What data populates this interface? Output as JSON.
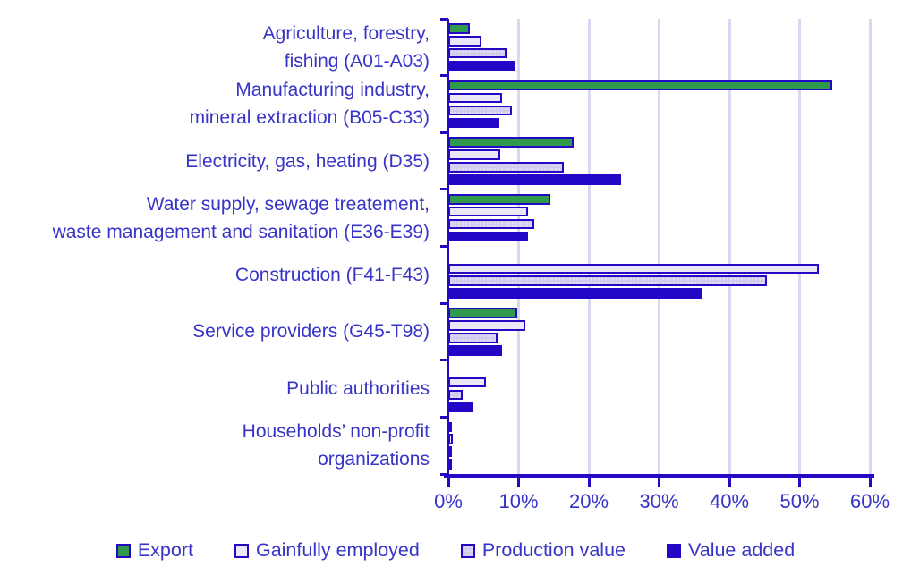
{
  "colors": {
    "axis": "#2408c4",
    "gridline": "#d7d9f0",
    "text": "#3734c7",
    "export_green": "#2d9b4b",
    "gainfully_fill": "#eae8fa",
    "production_fill": "#cfccee",
    "value_added_blue": "#2208c6",
    "background": "#ffffff"
  },
  "chart_data": {
    "type": "bar",
    "orientation": "horizontal",
    "title": "",
    "xlabel": "",
    "ylabel": "",
    "xlim": [
      0,
      60
    ],
    "x_tick_values": [
      0,
      10,
      20,
      30,
      40,
      50,
      60
    ],
    "x_tick_labels": [
      "0%",
      "10%",
      "20%",
      "30%",
      "40%",
      "50%",
      "60%"
    ],
    "grid": true,
    "legend_position": "bottom",
    "categories": [
      "Agriculture, forestry,\nfishing (A01-A03)",
      "Manufacturing industry,\nmineral extraction (B05-C33)",
      "Electricity, gas, heating (D35)",
      "Water supply, sewage treatement,\nwaste management and sanitation (E36-E39)",
      "Construction (F41-F43)",
      "Service providers (G45-T98)",
      "Public authorities",
      "Households’ non-profit\norganizations"
    ],
    "series": [
      {
        "name": "Export",
        "key": "export",
        "color": "#2d9b4b",
        "pattern": "solid",
        "values": [
          3.1,
          54.7,
          17.8,
          14.5,
          0,
          9.8,
          0,
          0.2
        ]
      },
      {
        "name": "Gainfully employed",
        "key": "gainfully",
        "color": "#eae8fa",
        "pattern": "solid",
        "values": [
          4.7,
          7.7,
          7.4,
          11.4,
          52.7,
          10.9,
          5.3,
          0.6
        ]
      },
      {
        "name": "Production value",
        "key": "production",
        "color": "#cfccee",
        "pattern": "dots",
        "values": [
          8.3,
          9.1,
          16.4,
          12.2,
          45.4,
          7.0,
          2.0,
          0.3
        ]
      },
      {
        "name": "Value added",
        "key": "value",
        "color": "#2208c6",
        "pattern": "solid",
        "values": [
          9.4,
          7.3,
          24.6,
          11.4,
          36.0,
          7.7,
          3.4,
          0.5
        ]
      }
    ]
  }
}
